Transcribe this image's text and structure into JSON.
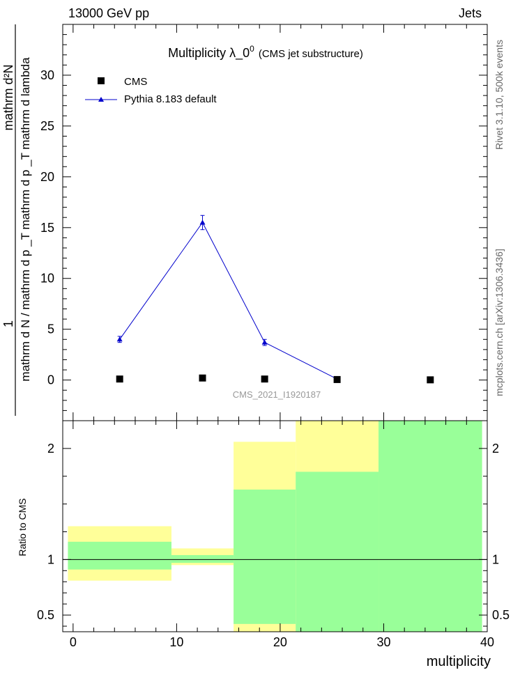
{
  "header": {
    "energy": "13000 GeV pp",
    "category": "Jets",
    "side_rivet": "Rivet 3.1.10,  500k events",
    "side_site": "mcplots.cern.ch [arXiv:1306.3436]",
    "watermark": "CMS_2021_I1920187"
  },
  "chart_data": [
    {
      "type": "scatter",
      "title": "Multiplicity  λ_0",
      "title_sup": "0",
      "title_suffix": "(CMS jet substructure)",
      "ylabel_numerator": "1",
      "ylabel_denominator": "mathrm d N / mathrm d p _T mathrm d p _T mathrm d lambda",
      "ylabel_top": "mathrm d²N",
      "xlim": [
        -1,
        40
      ],
      "ylim": [
        -4,
        35
      ],
      "yticks": [
        0,
        5,
        10,
        15,
        20,
        25,
        30
      ],
      "legend_position": "top-left",
      "series": [
        {
          "name": "CMS",
          "marker": "square",
          "color": "#000000",
          "x": [
            4.5,
            12.5,
            18.5,
            25.5,
            34.5
          ],
          "y": [
            0.1,
            0.2,
            0.1,
            0.05,
            0.02
          ]
        },
        {
          "name": "Pythia 8.183 default",
          "marker": "triangle",
          "color": "#0000cc",
          "x": [
            4.5,
            12.5,
            18.5,
            25.5
          ],
          "y": [
            4.0,
            15.5,
            3.7,
            0.1
          ],
          "yerr": [
            0.3,
            0.7,
            0.3,
            0.05
          ]
        }
      ]
    },
    {
      "type": "area",
      "ylabel": "Ratio to CMS",
      "xlabel": "multiplicity",
      "xlim": [
        -1,
        40
      ],
      "ylim": [
        0.35,
        2.25
      ],
      "yticks": [
        0.5,
        1,
        2
      ],
      "xticks": [
        0,
        10,
        20,
        30,
        40
      ],
      "reference_line": 1,
      "bands": [
        {
          "x": [
            -0.5,
            9.5
          ],
          "outer": [
            0.81,
            1.3
          ],
          "inner": [
            0.91,
            1.16
          ]
        },
        {
          "x": [
            9.5,
            15.5
          ],
          "outer": [
            0.95,
            1.1
          ],
          "inner": [
            0.97,
            1.04
          ]
        },
        {
          "x": [
            15.5,
            21.5
          ],
          "outer": [
            0.35,
            2.06
          ],
          "inner": [
            0.42,
            1.63
          ]
        },
        {
          "x": [
            21.5,
            29.5
          ],
          "outer": [
            0.35,
            2.25
          ],
          "inner": [
            0.35,
            1.79
          ]
        },
        {
          "x": [
            29.5,
            39.5
          ],
          "outer": [
            0.35,
            2.25
          ],
          "inner": [
            0.35,
            2.25
          ]
        }
      ],
      "colors": {
        "outer": "#ffff99",
        "inner": "#99ff99"
      }
    }
  ]
}
